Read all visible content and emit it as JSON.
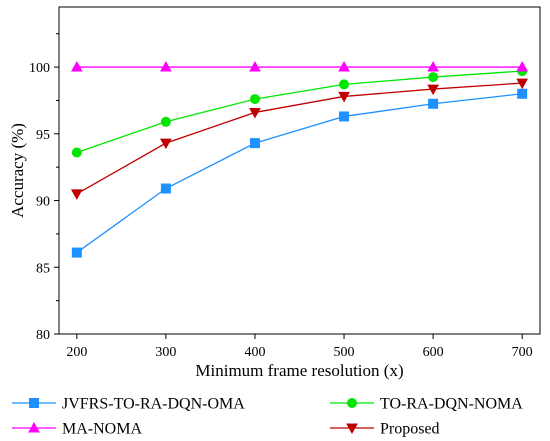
{
  "chart_data": {
    "type": "line",
    "xlabel": "Minimum frame resolution (x)",
    "ylabel": "Accuracy (%)",
    "x": [
      200,
      300,
      400,
      500,
      600,
      700
    ],
    "xlim": [
      180,
      720
    ],
    "ylim": [
      80,
      104.5
    ],
    "yticks": [
      80,
      85,
      90,
      95,
      100
    ],
    "grid": false,
    "legend_position": "bottom",
    "series": [
      {
        "name": "JVFRS-TO-RA-DQN-OMA",
        "color": "#1e90ff",
        "marker": "square",
        "values": [
          86.1,
          90.9,
          94.3,
          96.3,
          97.25,
          98.0
        ]
      },
      {
        "name": "TO-RA-DQN-NOMA",
        "color": "#00e600",
        "marker": "circle",
        "values": [
          93.6,
          95.9,
          97.6,
          98.7,
          99.25,
          99.7
        ]
      },
      {
        "name": "MA-NOMA",
        "color": "#ff00ff",
        "marker": "triangle-up",
        "values": [
          100,
          100,
          100,
          100,
          100,
          100
        ]
      },
      {
        "name": "Proposed",
        "color": "#c00000",
        "marker": "triangle-down",
        "values": [
          90.5,
          94.3,
          96.6,
          97.8,
          98.35,
          98.8
        ]
      }
    ]
  }
}
